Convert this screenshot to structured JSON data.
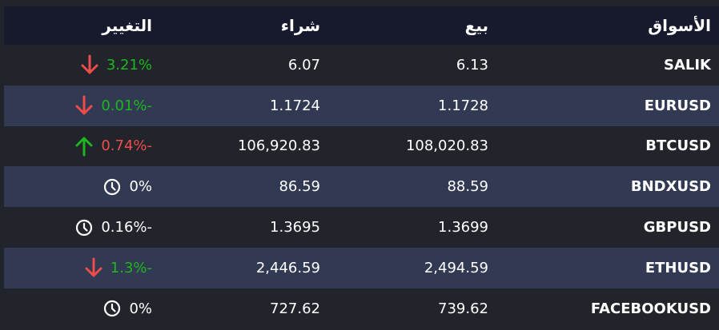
{
  "headers": {
    "market": "الأسواق",
    "sell": "بيع",
    "buy": "شراء",
    "change": "التغيير"
  },
  "colors": {
    "up": "#1eb61e",
    "down": "#f04c4c",
    "neutral": "#ffffff"
  },
  "rows": [
    {
      "market": "SALIK",
      "sell": "6.13",
      "buy": "6.07",
      "change": "3.21%",
      "change_color": "green",
      "icon": "arrow-down-icon"
    },
    {
      "market": "EURUSD",
      "sell": "1.1728",
      "buy": "1.1724",
      "change": "0.01%-",
      "change_color": "green",
      "icon": "arrow-down-icon"
    },
    {
      "market": "BTCUSD",
      "sell": "108,020.83",
      "buy": "106,920.83",
      "change": "0.74%-",
      "change_color": "red",
      "icon": "arrow-up-icon"
    },
    {
      "market": "BNDXUSD",
      "sell": "88.59",
      "buy": "86.59",
      "change": "0%",
      "change_color": "white",
      "icon": "clock-icon"
    },
    {
      "market": "GBPUSD",
      "sell": "1.3699",
      "buy": "1.3695",
      "change": "0.16%-",
      "change_color": "white",
      "icon": "clock-icon"
    },
    {
      "market": "ETHUSD",
      "sell": "2,494.59",
      "buy": "2,446.59",
      "change": "1.3%-",
      "change_color": "green",
      "icon": "arrow-down-icon"
    },
    {
      "market": "FACEBOOKUSD",
      "sell": "739.62",
      "buy": "727.62",
      "change": "0%",
      "change_color": "white",
      "icon": "clock-icon"
    }
  ]
}
